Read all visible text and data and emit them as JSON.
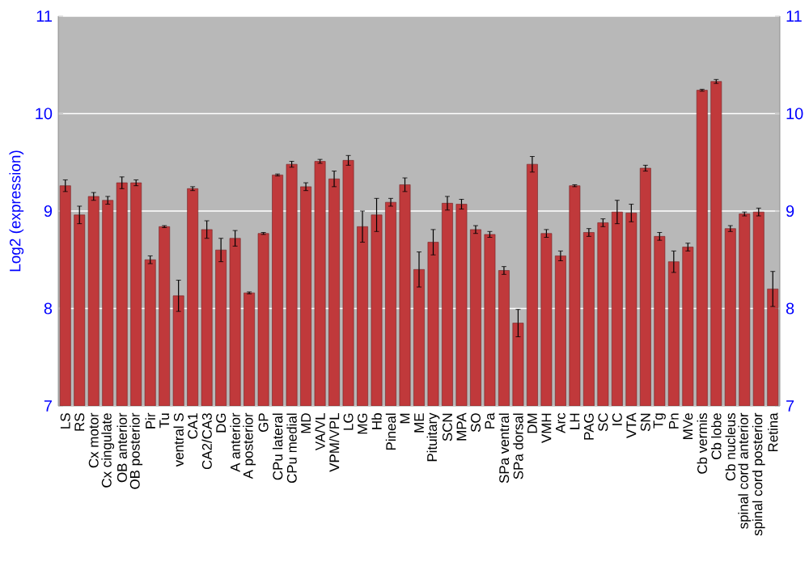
{
  "chart_data": {
    "type": "bar",
    "ylabel": "Log2 (expression)",
    "categories": [
      "LS",
      "RS",
      "Cx motor",
      "Cx cingulate",
      "OB anterior",
      "OB posterior",
      "Pir",
      "Tu",
      "ventral S",
      "CA1",
      "CA2/CA3",
      "DG",
      "A anterior",
      "A posterior",
      "GP",
      "CPu lateral",
      "CPu medial",
      "MD",
      "VA/VL",
      "VPM/VPL",
      "LG",
      "MG",
      "Hb",
      "Pineal",
      "M",
      "ME",
      "Pituitary",
      "SCN",
      "MPA",
      "SO",
      "Pa",
      "SPa ventral",
      "SPa dorsal",
      "DM",
      "VMH",
      "Arc",
      "LH",
      "PAG",
      "SC",
      "IC",
      "VTA",
      "SN",
      "Tg",
      "Pn",
      "MVe",
      "Cb vermis",
      "Cb lobe",
      "Cb nucleus",
      "spinal cord anterior",
      "spinal cord posterior",
      "Retina"
    ],
    "values": [
      9.26,
      8.96,
      9.15,
      9.11,
      9.29,
      9.29,
      8.5,
      8.84,
      8.13,
      9.23,
      8.81,
      8.6,
      8.72,
      8.16,
      8.77,
      9.37,
      9.48,
      9.25,
      9.51,
      9.33,
      9.52,
      8.84,
      8.96,
      9.09,
      9.27,
      8.4,
      8.68,
      9.08,
      9.07,
      8.81,
      8.76,
      8.39,
      7.85,
      9.48,
      8.77,
      8.54,
      9.26,
      8.78,
      8.88,
      8.99,
      8.98,
      9.44,
      8.74,
      8.48,
      8.63,
      10.24,
      10.33,
      8.82,
      8.97,
      8.99,
      8.2
    ],
    "errors": [
      0.06,
      0.09,
      0.04,
      0.04,
      0.06,
      0.03,
      0.04,
      0.01,
      0.16,
      0.02,
      0.09,
      0.12,
      0.08,
      0.01,
      0.01,
      0.01,
      0.03,
      0.04,
      0.02,
      0.08,
      0.05,
      0.16,
      0.17,
      0.04,
      0.07,
      0.18,
      0.13,
      0.07,
      0.05,
      0.04,
      0.03,
      0.04,
      0.14,
      0.08,
      0.04,
      0.05,
      0.01,
      0.04,
      0.04,
      0.12,
      0.09,
      0.03,
      0.04,
      0.11,
      0.04,
      0.01,
      0.02,
      0.03,
      0.02,
      0.04,
      0.18
    ],
    "color": "#c0393b",
    "ylim": [
      7,
      11
    ],
    "yticks": [
      7,
      8,
      9,
      10,
      11
    ],
    "y2lim": [
      7,
      11
    ],
    "y2ticks": [
      7,
      8,
      9,
      10,
      11
    ],
    "grid": "y"
  }
}
